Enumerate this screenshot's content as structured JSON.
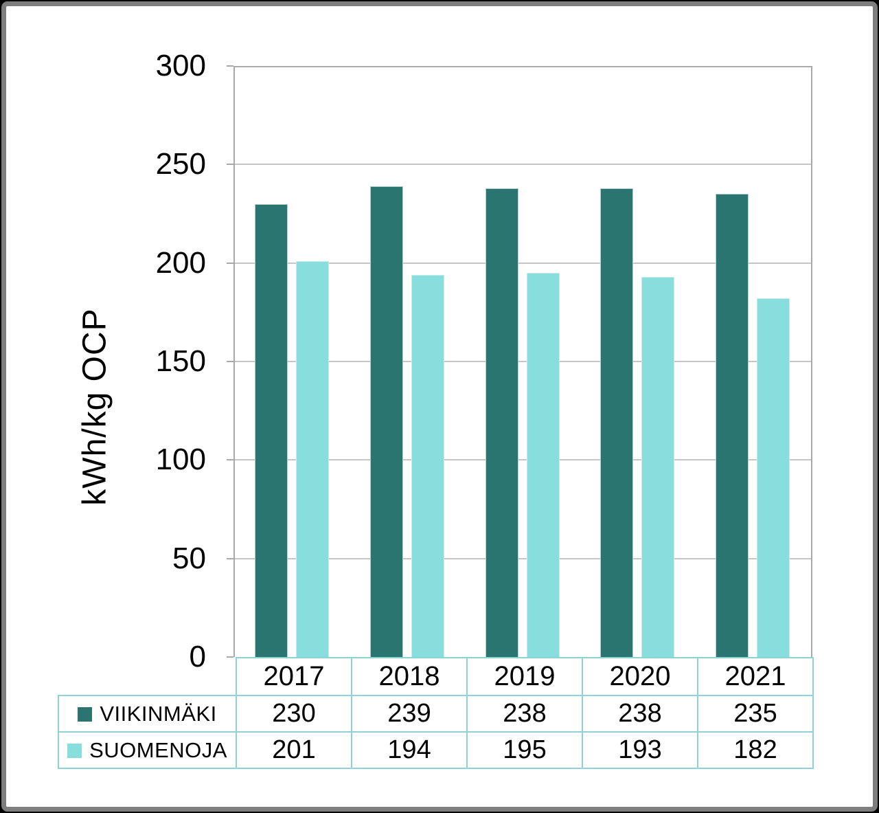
{
  "chart_data": {
    "type": "bar",
    "title": "",
    "xlabel": "",
    "ylabel": "kWh/kg OCP",
    "categories": [
      "2017",
      "2018",
      "2019",
      "2020",
      "2021"
    ],
    "series": [
      {
        "name": "VIIKINMÄKI",
        "color": "#2A7570",
        "values": [
          230,
          239,
          238,
          238,
          235
        ]
      },
      {
        "name": "SUOMENOJA",
        "color": "#88DEDC",
        "values": [
          201,
          194,
          195,
          193,
          182
        ]
      }
    ],
    "ylim": [
      0,
      300
    ],
    "yticks": [
      0,
      50,
      100,
      150,
      200,
      250,
      300
    ],
    "grid": true,
    "legend_position": "data-table-left",
    "show_data_table": true
  },
  "colors": {
    "series_dark": "#2A7570",
    "series_light": "#88DEDC",
    "gridline": "#C6C6C6",
    "plot_border": "#A9A9A9",
    "table_border": "#8FD2D6",
    "frame_border": "#7E7E7E",
    "frame_outer": "#000000",
    "text": "#000000"
  }
}
